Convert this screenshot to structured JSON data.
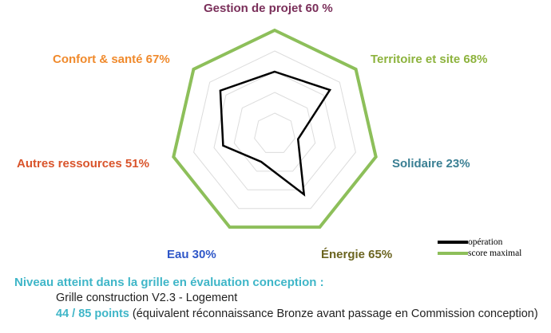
{
  "chart_data": {
    "type": "radar",
    "axes": [
      {
        "label": "Gestion de projet 60 %",
        "color": "#7a2f5a"
      },
      {
        "label": "Territoire et site 68%",
        "color": "#8db33d"
      },
      {
        "label": "Solidaire 23%",
        "color": "#3a7f93"
      },
      {
        "label": "Énergie 65%",
        "color": "#6b6420"
      },
      {
        "label": "Eau 30%",
        "color": "#2f57c8"
      },
      {
        "label": "Autres ressources 51%",
        "color": "#d9542b"
      },
      {
        "label": "Confort & santé 67%",
        "color": "#f08a2c"
      }
    ],
    "series": [
      {
        "name": "opération",
        "values": [
          60,
          68,
          23,
          65,
          30,
          51,
          67
        ],
        "color": "#000000"
      },
      {
        "name": "score maximal",
        "values": [
          100,
          100,
          100,
          100,
          100,
          100,
          100
        ],
        "color": "#8dbf5a"
      }
    ],
    "rmax": 100,
    "grid_levels": [
      20,
      40,
      60,
      80
    ]
  },
  "footer": {
    "title": "Niveau atteint dans la grille en évaluation conception :",
    "grid_name": "Grille construction V2.3 - Logement",
    "points": "44 / 85 points",
    "note": " (équivalent réconnaissance Bronze avant passage en Commission conception)"
  }
}
